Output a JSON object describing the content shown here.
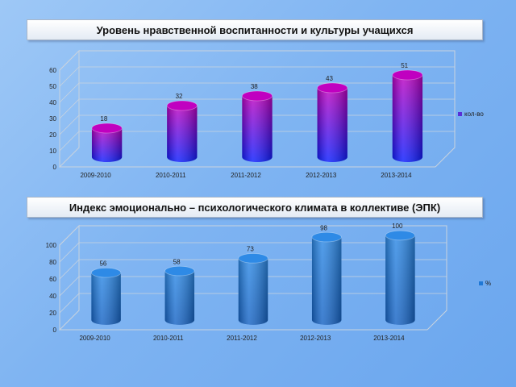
{
  "chart_data": [
    {
      "type": "bar",
      "title": "Уровень нравственной воспитанности и культуры учащихся",
      "categories": [
        "2009-2010",
        "2010-2011",
        "2011-2012",
        "2012-2013",
        "2013-2014"
      ],
      "series": [
        {
          "name": "кол-во",
          "values": [
            18,
            32,
            38,
            43,
            51
          ]
        }
      ],
      "ylim": [
        0,
        60
      ],
      "yticks": [
        "0",
        "10",
        "20",
        "30",
        "40",
        "50",
        "60"
      ],
      "grid": true,
      "legend": "right",
      "colors": {
        "top": "#c000c0",
        "bottom": "#0a1cff",
        "legend": "#5a2fd6"
      }
    },
    {
      "type": "bar",
      "title": "Индекс эмоционально – психологического климата в коллективе (ЭПК)",
      "categories": [
        "2009-2010",
        "2010-2011",
        "2011-2012",
        "2012-2013",
        "2013-2014"
      ],
      "series": [
        {
          "name": "%",
          "values": [
            56,
            58,
            73,
            98,
            100
          ]
        }
      ],
      "ylim": [
        0,
        100
      ],
      "yticks": [
        "0",
        "20",
        "40",
        "60",
        "80",
        "100"
      ],
      "grid": true,
      "legend": "right",
      "colors": {
        "top": "#2e8ae6",
        "bottom": "#1663c4",
        "legend": "#1f78d6"
      }
    }
  ]
}
